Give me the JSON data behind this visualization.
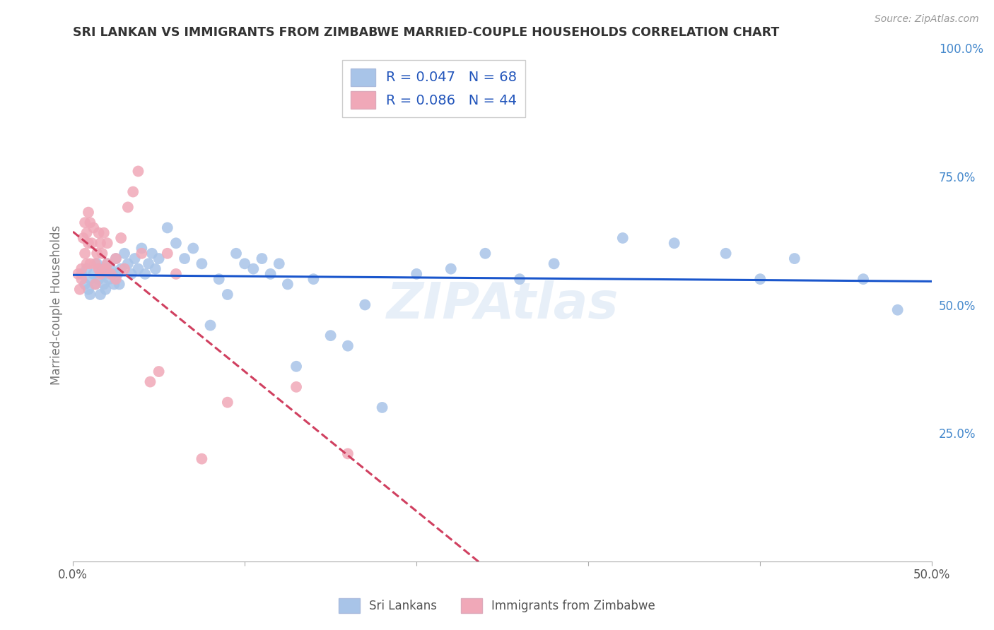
{
  "title": "SRI LANKAN VS IMMIGRANTS FROM ZIMBABWE MARRIED-COUPLE HOUSEHOLDS CORRELATION CHART",
  "source": "Source: ZipAtlas.com",
  "ylabel": "Married-couple Households",
  "xlim": [
    0.0,
    0.5
  ],
  "ylim": [
    0.0,
    1.0
  ],
  "yticks_right": [
    0.25,
    0.5,
    0.75,
    1.0
  ],
  "ytick_labels_right": [
    "25.0%",
    "50.0%",
    "75.0%",
    "100.0%"
  ],
  "series": [
    {
      "name": "Sri Lankans",
      "R": 0.047,
      "N": 68,
      "color": "#a8c4e8",
      "line_color": "#1a56cc",
      "line_style": "solid",
      "x": [
        0.005,
        0.007,
        0.008,
        0.009,
        0.01,
        0.01,
        0.012,
        0.013,
        0.014,
        0.015,
        0.016,
        0.017,
        0.018,
        0.018,
        0.019,
        0.02,
        0.021,
        0.022,
        0.023,
        0.024,
        0.025,
        0.026,
        0.027,
        0.028,
        0.03,
        0.032,
        0.034,
        0.036,
        0.038,
        0.04,
        0.042,
        0.044,
        0.046,
        0.048,
        0.05,
        0.055,
        0.06,
        0.065,
        0.07,
        0.075,
        0.08,
        0.085,
        0.09,
        0.095,
        0.1,
        0.105,
        0.11,
        0.115,
        0.12,
        0.125,
        0.13,
        0.14,
        0.15,
        0.16,
        0.17,
        0.18,
        0.2,
        0.22,
        0.24,
        0.26,
        0.28,
        0.32,
        0.35,
        0.38,
        0.4,
        0.42,
        0.46,
        0.48
      ],
      "y": [
        0.56,
        0.54,
        0.57,
        0.53,
        0.55,
        0.52,
        0.56,
        0.54,
        0.58,
        0.55,
        0.52,
        0.57,
        0.54,
        0.56,
        0.53,
        0.58,
        0.55,
        0.57,
        0.56,
        0.54,
        0.59,
        0.56,
        0.54,
        0.57,
        0.6,
        0.58,
        0.56,
        0.59,
        0.57,
        0.61,
        0.56,
        0.58,
        0.6,
        0.57,
        0.59,
        0.65,
        0.62,
        0.59,
        0.61,
        0.58,
        0.46,
        0.55,
        0.52,
        0.6,
        0.58,
        0.57,
        0.59,
        0.56,
        0.58,
        0.54,
        0.38,
        0.55,
        0.44,
        0.42,
        0.5,
        0.3,
        0.56,
        0.57,
        0.6,
        0.55,
        0.58,
        0.63,
        0.62,
        0.6,
        0.55,
        0.59,
        0.55,
        0.49
      ]
    },
    {
      "name": "Immigrants from Zimbabwe",
      "R": 0.086,
      "N": 44,
      "color": "#f0a8b8",
      "line_color": "#d04060",
      "line_style": "dashed",
      "x": [
        0.003,
        0.004,
        0.005,
        0.005,
        0.006,
        0.007,
        0.007,
        0.008,
        0.008,
        0.009,
        0.009,
        0.01,
        0.01,
        0.011,
        0.012,
        0.013,
        0.013,
        0.014,
        0.015,
        0.015,
        0.016,
        0.016,
        0.017,
        0.018,
        0.019,
        0.02,
        0.02,
        0.022,
        0.025,
        0.025,
        0.028,
        0.03,
        0.032,
        0.035,
        0.038,
        0.04,
        0.045,
        0.05,
        0.055,
        0.06,
        0.075,
        0.09,
        0.13,
        0.16
      ],
      "y": [
        0.56,
        0.53,
        0.57,
        0.55,
        0.63,
        0.66,
        0.6,
        0.64,
        0.58,
        0.68,
        0.62,
        0.66,
        0.58,
        0.62,
        0.65,
        0.58,
        0.54,
        0.6,
        0.64,
        0.57,
        0.62,
        0.56,
        0.6,
        0.64,
        0.57,
        0.62,
        0.58,
        0.56,
        0.59,
        0.55,
        0.63,
        0.57,
        0.69,
        0.72,
        0.76,
        0.6,
        0.35,
        0.37,
        0.6,
        0.56,
        0.2,
        0.31,
        0.34,
        0.21
      ]
    }
  ],
  "watermark": "ZIPAtlas",
  "background_color": "#ffffff",
  "grid_color": "#cccccc",
  "title_color": "#333333",
  "right_axis_color": "#4488cc"
}
